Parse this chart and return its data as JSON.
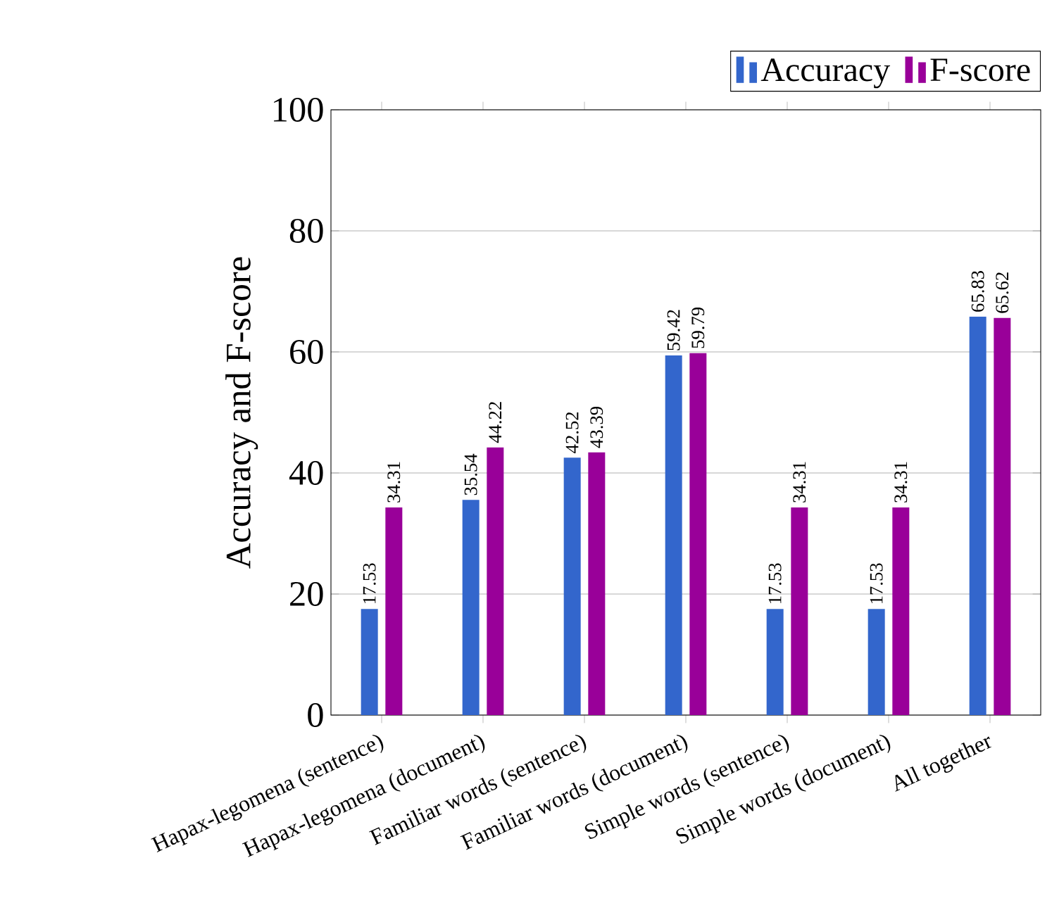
{
  "chart_data": {
    "type": "bar",
    "ylabel": "Accuracy and F-score",
    "categories": [
      "Hapax-legomena (sentence)",
      "Hapax-legomena (document)",
      "Familiar words (sentence)",
      "Familiar words (document)",
      "Simple words (sentence)",
      "Simple words (document)",
      "All together"
    ],
    "series": [
      {
        "name": "Accuracy",
        "color": "#3366cc",
        "values": [
          17.53,
          35.54,
          42.52,
          59.42,
          17.53,
          17.53,
          65.83
        ]
      },
      {
        "name": "F-score",
        "color": "#990099",
        "values": [
          34.31,
          44.22,
          43.39,
          59.79,
          34.31,
          34.31,
          65.62
        ]
      }
    ],
    "ylim": [
      0,
      100
    ],
    "yticks": [
      0,
      20,
      40,
      60,
      80,
      100
    ],
    "grid": "y",
    "legend": "top right",
    "data_labels": true
  }
}
